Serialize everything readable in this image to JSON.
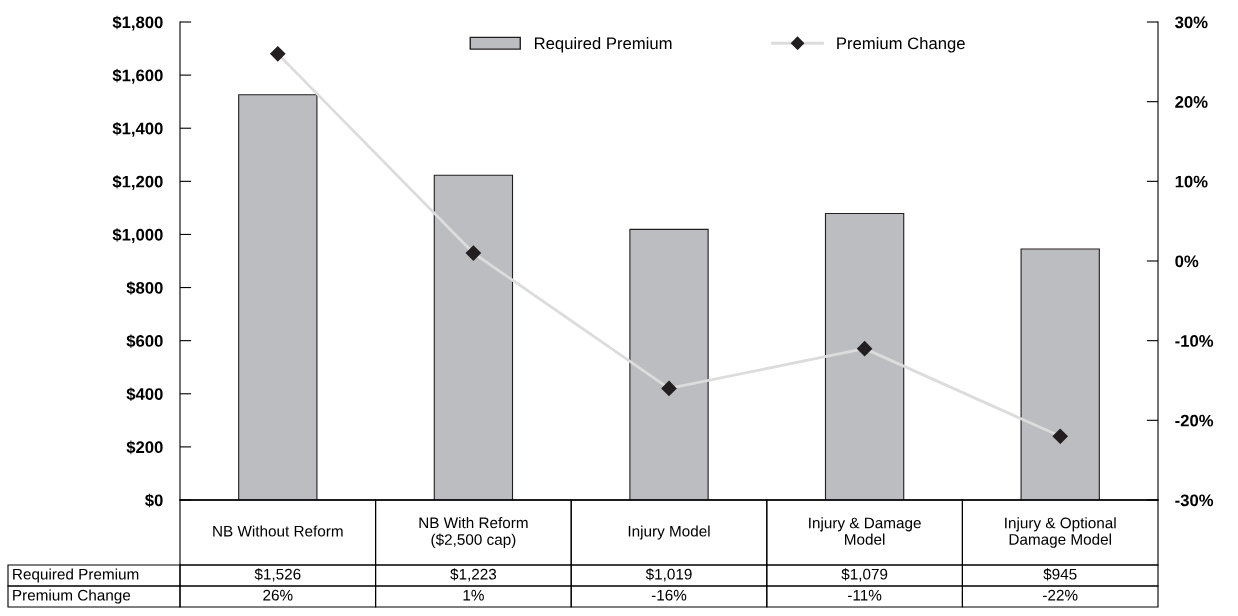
{
  "chart_data": {
    "type": "bar",
    "categories": [
      "NB Without Reform",
      "NB With Reform\n($2,500 cap)",
      "Injury Model",
      "Injury & Damage\nModel",
      "Injury & Optional\nDamage Model"
    ],
    "series": [
      {
        "name": "Required Premium",
        "color": "#bcbdc0",
        "values": [
          1526,
          1223,
          1019,
          1079,
          945
        ],
        "value_labels": [
          "$1,526",
          "$1,223",
          "$1,019",
          "$1,079",
          "$945"
        ]
      },
      {
        "name": "Premium Change",
        "type": "line",
        "axis": "y2",
        "color": "#dcdcdc",
        "values": [
          26,
          1,
          -16,
          -11,
          -22
        ],
        "value_labels": [
          "26%",
          "1%",
          "-16%",
          "-11%",
          "-22%"
        ]
      }
    ],
    "ylim": [
      0,
      1800
    ],
    "yticks": [
      {
        "value": 0,
        "label": "$0"
      },
      {
        "value": 200,
        "label": "$200"
      },
      {
        "value": 400,
        "label": "$400"
      },
      {
        "value": 600,
        "label": "$600"
      },
      {
        "value": 800,
        "label": "$800"
      },
      {
        "value": 1000,
        "label": "$1,000"
      },
      {
        "value": 1200,
        "label": "$1,200"
      },
      {
        "value": 1400,
        "label": "$1,400"
      },
      {
        "value": 1600,
        "label": "$1,600"
      },
      {
        "value": 1800,
        "label": "$1,800"
      }
    ],
    "y2lim": [
      -30,
      30
    ],
    "y2ticks": [
      {
        "value": -30,
        "label": "-30%"
      },
      {
        "value": -20,
        "label": "-20%"
      },
      {
        "value": -10,
        "label": "-10%"
      },
      {
        "value": 0,
        "label": "0%"
      },
      {
        "value": 10,
        "label": "10%"
      },
      {
        "value": 20,
        "label": "20%"
      },
      {
        "value": 30,
        "label": "30%"
      }
    ],
    "marker": "diamond",
    "grid": false,
    "legend": "top"
  }
}
